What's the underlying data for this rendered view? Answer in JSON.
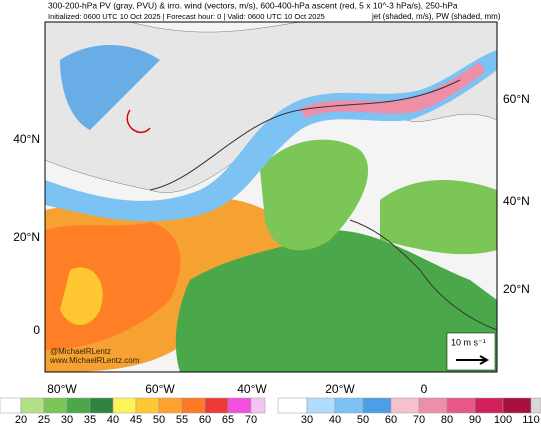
{
  "header": {
    "line1": "300-200-hPa PV (gray, PVU) & irro. wind (vectors, m/s), 600-400-hPa ascent (red, 5 x 10^-3 hPa/s), 250-hPa",
    "line2": "Initialized: 0600 UTC 10 Oct 2025 | Forecast hour: 0 | Valid: 0600 UTC 10 Oct 2025",
    "line3": "jet (shaded, m/s), PW (shaded, mm)"
  },
  "map": {
    "lat_labels_left": [
      "40°N",
      "20°N",
      "0"
    ],
    "lat_labels_right": [
      "60°N",
      "40°N",
      "20°N"
    ],
    "lon_labels": [
      "80°W",
      "60°W",
      "40°W",
      "20°W",
      "0"
    ],
    "watermark": [
      "@MichaelRLentz",
      "www.MichaelRLentz.com"
    ],
    "reference_vector": "10 m s⁻¹"
  },
  "colorbars": [
    {
      "ticks": [
        20,
        25,
        30,
        35,
        40,
        45,
        50,
        55,
        60,
        65,
        70
      ],
      "colors": [
        "#ffffff",
        "#b5e08a",
        "#7cc657",
        "#4aa84a",
        "#2e8540",
        "#fff35a",
        "#ffc832",
        "#ffa22d",
        "#ff7a24",
        "#ee3a36",
        "#f450e0",
        "#f2c4f2"
      ]
    },
    {
      "ticks": [
        30,
        40,
        50,
        60,
        70,
        80,
        90,
        100,
        110
      ],
      "colors": [
        "#ffffff",
        "#b0dcff",
        "#7cc3f4",
        "#4a9fe6",
        "#f4c2cc",
        "#ee8fa8",
        "#e6578a",
        "#d21f5c",
        "#a8103e",
        "#d8d8d8"
      ]
    }
  ]
}
